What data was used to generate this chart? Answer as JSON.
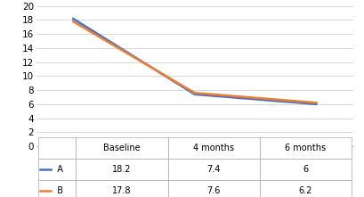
{
  "x_labels": [
    "Baseline",
    "4 months",
    "6 months"
  ],
  "series": [
    {
      "name": "A",
      "values": [
        18.2,
        7.4,
        6
      ],
      "color": "#4472C4",
      "linewidth": 1.8
    },
    {
      "name": "B",
      "values": [
        17.8,
        7.6,
        6.2
      ],
      "color": "#ED7D31",
      "linewidth": 1.8
    }
  ],
  "ylim": [
    0,
    20
  ],
  "yticks": [
    0,
    2,
    4,
    6,
    8,
    10,
    12,
    14,
    16,
    18,
    20
  ],
  "table_rows": [
    [
      "18.2",
      "7.4",
      "6"
    ],
    [
      "17.8",
      "7.6",
      "6.2"
    ]
  ],
  "table_col_labels": [
    "Baseline",
    "4 months",
    "6 months"
  ],
  "legend_colors": [
    "#4472C4",
    "#ED7D31"
  ],
  "legend_labels": [
    "A",
    "B"
  ],
  "background_color": "#FFFFFF",
  "grid_color": "#D0D0D0",
  "font_size": 7.5,
  "table_font_size": 7.0
}
